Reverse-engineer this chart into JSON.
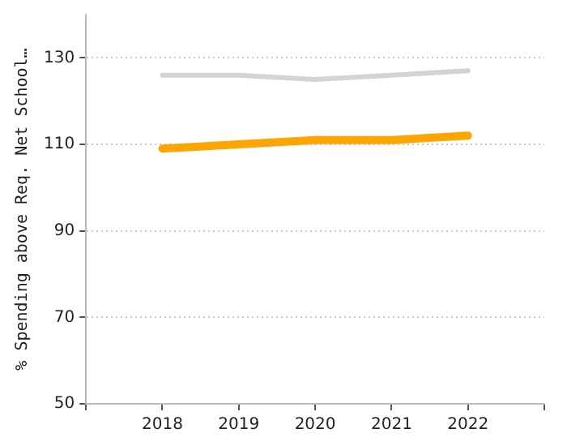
{
  "chart_data": {
    "type": "line",
    "ylabel": "% Spending above Req. Net School…",
    "categories": [
      "2018",
      "2019",
      "2020",
      "2021",
      "2022"
    ],
    "series": [
      {
        "color": "#d3d3d3",
        "values": [
          126,
          126,
          125,
          126,
          127
        ]
      },
      {
        "color": "#ffa500",
        "values": [
          109,
          110,
          111,
          111,
          112
        ]
      }
    ],
    "ylim": [
      50,
      140
    ],
    "yticks": [
      50,
      70,
      90,
      110,
      130
    ],
    "grid": "y",
    "legend": false,
    "marker": "none",
    "line_style": "solid"
  }
}
